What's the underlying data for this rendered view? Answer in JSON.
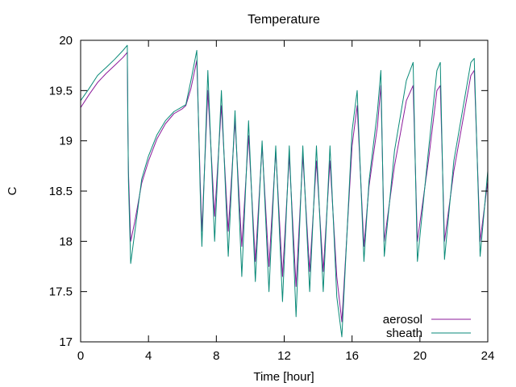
{
  "chart_data": {
    "type": "line",
    "title": "Temperature",
    "xlabel": "Time [hour]",
    "ylabel": "C",
    "xlim": [
      0,
      24
    ],
    "ylim": [
      17,
      20
    ],
    "xticks": [
      0,
      4,
      8,
      12,
      16,
      20,
      24
    ],
    "yticks": [
      17,
      17.5,
      18,
      18.5,
      19,
      19.5,
      20
    ],
    "grid": false,
    "legend_position": "bottom-right",
    "series": [
      {
        "name": "aerosol",
        "color": "#8b1a9a",
        "points": [
          [
            0,
            19.33
          ],
          [
            0.5,
            19.46
          ],
          [
            1.0,
            19.58
          ],
          [
            1.5,
            19.67
          ],
          [
            2.0,
            19.75
          ],
          [
            2.5,
            19.83
          ],
          [
            2.75,
            19.88
          ],
          [
            2.78,
            19.2
          ],
          [
            2.82,
            18.7
          ],
          [
            2.95,
            18.0
          ],
          [
            3.2,
            18.2
          ],
          [
            3.6,
            18.58
          ],
          [
            4.0,
            18.8
          ],
          [
            4.5,
            19.02
          ],
          [
            5.0,
            19.17
          ],
          [
            5.5,
            19.27
          ],
          [
            6.0,
            19.32
          ],
          [
            6.2,
            19.35
          ],
          [
            6.5,
            19.52
          ],
          [
            6.85,
            19.8
          ],
          [
            7.05,
            18.6
          ],
          [
            7.15,
            18.1
          ],
          [
            7.5,
            19.5
          ],
          [
            7.9,
            18.25
          ],
          [
            8.3,
            19.35
          ],
          [
            8.7,
            18.1
          ],
          [
            9.1,
            19.2
          ],
          [
            9.5,
            17.95
          ],
          [
            9.9,
            19.05
          ],
          [
            10.3,
            17.8
          ],
          [
            10.7,
            18.95
          ],
          [
            11.1,
            17.75
          ],
          [
            11.5,
            18.9
          ],
          [
            11.9,
            17.65
          ],
          [
            12.3,
            18.85
          ],
          [
            12.7,
            17.55
          ],
          [
            13.1,
            18.85
          ],
          [
            13.5,
            17.7
          ],
          [
            13.9,
            18.8
          ],
          [
            14.3,
            17.7
          ],
          [
            14.7,
            18.8
          ],
          [
            15.1,
            17.65
          ],
          [
            15.4,
            17.2
          ],
          [
            16.0,
            18.95
          ],
          [
            16.3,
            19.35
          ],
          [
            16.7,
            17.95
          ],
          [
            17.0,
            18.55
          ],
          [
            17.5,
            19.15
          ],
          [
            17.7,
            19.55
          ],
          [
            17.9,
            18.0
          ],
          [
            18.5,
            18.75
          ],
          [
            19.2,
            19.4
          ],
          [
            19.6,
            19.55
          ],
          [
            19.85,
            18.0
          ],
          [
            20.5,
            18.8
          ],
          [
            21.0,
            19.5
          ],
          [
            21.2,
            19.55
          ],
          [
            21.45,
            18.0
          ],
          [
            22.0,
            18.7
          ],
          [
            23.0,
            19.65
          ],
          [
            23.2,
            19.7
          ],
          [
            23.55,
            18.0
          ],
          [
            24,
            18.6
          ]
        ]
      },
      {
        "name": "sheath",
        "color": "#0a8a78",
        "points": [
          [
            0,
            19.4
          ],
          [
            0.5,
            19.52
          ],
          [
            1.0,
            19.65
          ],
          [
            1.5,
            19.73
          ],
          [
            2.0,
            19.81
          ],
          [
            2.5,
            19.9
          ],
          [
            2.75,
            19.95
          ],
          [
            2.78,
            19.3
          ],
          [
            2.82,
            18.6
          ],
          [
            2.95,
            17.78
          ],
          [
            3.2,
            18.1
          ],
          [
            3.6,
            18.62
          ],
          [
            4.0,
            18.85
          ],
          [
            4.5,
            19.06
          ],
          [
            5.0,
            19.2
          ],
          [
            5.5,
            19.29
          ],
          [
            6.0,
            19.34
          ],
          [
            6.2,
            19.36
          ],
          [
            6.5,
            19.6
          ],
          [
            6.85,
            19.9
          ],
          [
            7.05,
            18.5
          ],
          [
            7.15,
            17.95
          ],
          [
            7.5,
            19.7
          ],
          [
            7.9,
            18.0
          ],
          [
            8.3,
            19.5
          ],
          [
            8.7,
            17.85
          ],
          [
            9.1,
            19.3
          ],
          [
            9.5,
            17.65
          ],
          [
            9.9,
            19.2
          ],
          [
            10.3,
            17.6
          ],
          [
            10.7,
            19.0
          ],
          [
            11.1,
            17.5
          ],
          [
            11.5,
            18.95
          ],
          [
            11.9,
            17.4
          ],
          [
            12.3,
            18.95
          ],
          [
            12.7,
            17.25
          ],
          [
            13.1,
            18.95
          ],
          [
            13.5,
            17.5
          ],
          [
            13.9,
            18.95
          ],
          [
            14.3,
            17.5
          ],
          [
            14.7,
            18.95
          ],
          [
            15.1,
            17.45
          ],
          [
            15.4,
            17.05
          ],
          [
            16.0,
            19.1
          ],
          [
            16.3,
            19.5
          ],
          [
            16.7,
            17.8
          ],
          [
            17.0,
            18.6
          ],
          [
            17.5,
            19.3
          ],
          [
            17.7,
            19.7
          ],
          [
            17.9,
            17.85
          ],
          [
            18.5,
            18.9
          ],
          [
            19.2,
            19.6
          ],
          [
            19.6,
            19.78
          ],
          [
            19.85,
            17.8
          ],
          [
            20.5,
            18.9
          ],
          [
            21.0,
            19.7
          ],
          [
            21.2,
            19.78
          ],
          [
            21.45,
            17.82
          ],
          [
            22.0,
            18.8
          ],
          [
            23.0,
            19.78
          ],
          [
            23.2,
            19.82
          ],
          [
            23.55,
            17.85
          ],
          [
            24,
            18.7
          ]
        ]
      }
    ]
  }
}
